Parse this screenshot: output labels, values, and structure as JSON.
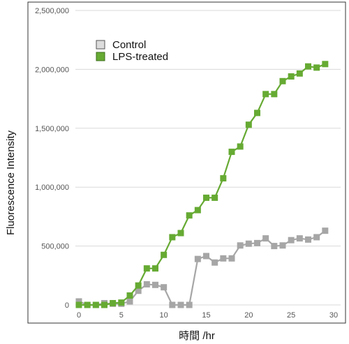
{
  "chart_data": {
    "type": "line",
    "xlabel": "時間 /hr",
    "ylabel": "Fluorescence Intensity",
    "xlim": [
      -0.5,
      30
    ],
    "ylim": [
      0,
      2500000
    ],
    "x_ticks": [
      0,
      5,
      10,
      15,
      20,
      25,
      30
    ],
    "x_tick_labels": [
      "0",
      "5",
      "10",
      "15",
      "20",
      "25",
      "30"
    ],
    "y_ticks": [
      0,
      500000,
      1000000,
      1500000,
      2000000,
      2500000
    ],
    "y_tick_labels": [
      "0",
      "500,000",
      "1,000,000",
      "1,500,000",
      "2,000,000",
      "2,500,000"
    ],
    "grid": "horizontal",
    "legend": "top-left",
    "marker": "square",
    "series": [
      {
        "name": "Control",
        "color": "#a6a6a6",
        "x": [
          0,
          1,
          2,
          3,
          4,
          5,
          6,
          7,
          8,
          9,
          10,
          11,
          12,
          13,
          14,
          15,
          16,
          17,
          18,
          19,
          20,
          21,
          22,
          23,
          24,
          25,
          26,
          27,
          28,
          29
        ],
        "y": [
          30000,
          0,
          0,
          15000,
          10000,
          10000,
          30000,
          120000,
          175000,
          170000,
          150000,
          0,
          0,
          0,
          390000,
          415000,
          360000,
          395000,
          395000,
          505000,
          520000,
          525000,
          565000,
          500000,
          505000,
          550000,
          565000,
          555000,
          575000,
          630000
        ]
      },
      {
        "name": "LPS-treated",
        "color": "#66aa33",
        "x": [
          0,
          1,
          2,
          3,
          4,
          5,
          6,
          7,
          8,
          9,
          10,
          11,
          12,
          13,
          14,
          15,
          16,
          17,
          18,
          19,
          20,
          21,
          22,
          23,
          24,
          25,
          26,
          27,
          28,
          29
        ],
        "y": [
          0,
          0,
          0,
          0,
          15000,
          20000,
          80000,
          165000,
          310000,
          310000,
          425000,
          575000,
          610000,
          760000,
          805000,
          910000,
          910000,
          1075000,
          1300000,
          1345000,
          1530000,
          1630000,
          1790000,
          1790000,
          1900000,
          1940000,
          1965000,
          2025000,
          2015000,
          2045000
        ]
      }
    ]
  }
}
